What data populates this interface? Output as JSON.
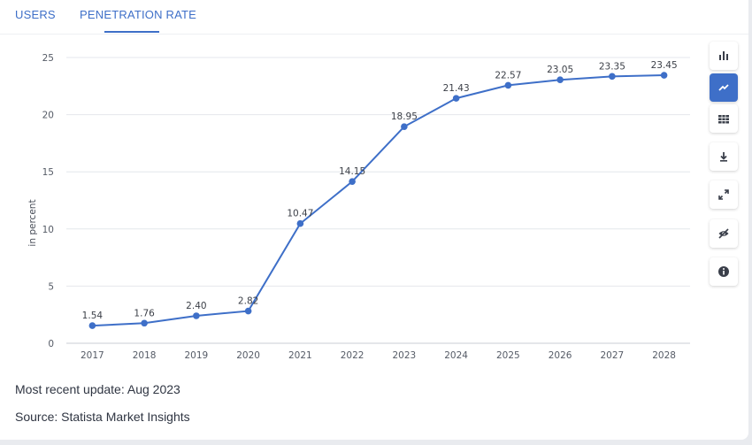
{
  "tabs": [
    {
      "label": "USERS",
      "active": false
    },
    {
      "label": "PENETRATION RATE",
      "active": true
    }
  ],
  "chart_data": {
    "type": "line",
    "title": "",
    "xlabel": "",
    "ylabel": "in percent",
    "x": [
      "2017",
      "2018",
      "2019",
      "2020",
      "2021",
      "2022",
      "2023",
      "2024",
      "2025",
      "2026",
      "2027",
      "2028"
    ],
    "values": [
      1.54,
      1.76,
      2.4,
      2.82,
      10.47,
      14.15,
      18.95,
      21.43,
      22.57,
      23.05,
      23.35,
      23.45
    ],
    "labels": [
      "1.54",
      "1.76",
      "2.40",
      "2.82",
      "10.47",
      "14.15",
      "18.95",
      "21.43",
      "22.57",
      "23.05",
      "23.35",
      "23.45"
    ],
    "ylim": [
      0,
      25
    ],
    "yticks": [
      "0",
      "5",
      "10",
      "15",
      "20",
      "25"
    ],
    "grid": true,
    "color": "#3e6fc8"
  },
  "footer": {
    "update": "Most recent update: Aug 2023",
    "source": "Source: Statista Market Insights"
  },
  "toolbar": [
    {
      "icon": "bar-chart-icon",
      "active": false
    },
    {
      "icon": "line-chart-icon",
      "active": true
    },
    {
      "icon": "table-icon",
      "active": false
    },
    {
      "icon": "download-icon",
      "active": false
    },
    {
      "icon": "expand-icon",
      "active": false
    },
    {
      "icon": "hide-icon",
      "active": false
    },
    {
      "icon": "info-icon",
      "active": false
    }
  ],
  "colors": {
    "accent": "#3e6fc8",
    "grid": "#e4e7ec"
  }
}
